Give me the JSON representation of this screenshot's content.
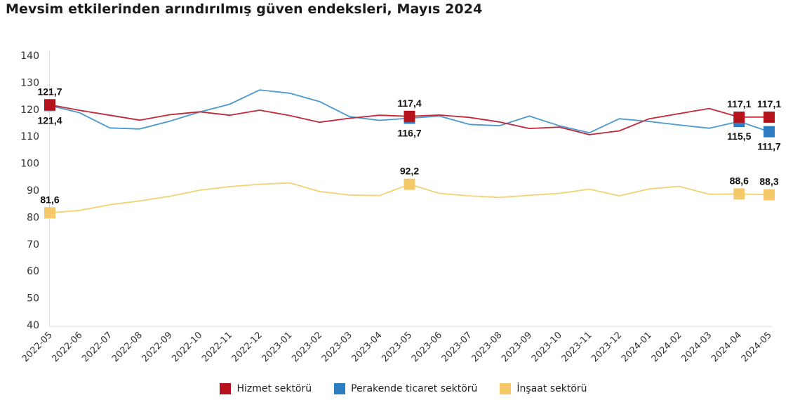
{
  "chart_data": {
    "type": "line",
    "title": "Mevsim etkilerinden arındırılmış güven endeksleri, Mayıs 2024",
    "xlabel": "",
    "ylabel": "",
    "ylim": [
      40,
      140
    ],
    "yticks": [
      "40",
      "50",
      "60",
      "70",
      "80",
      "90",
      "100",
      "110",
      "120",
      "130",
      "140"
    ],
    "grid": false,
    "legend_position": "bottom",
    "categories": [
      "2022-05",
      "2022-06",
      "2022-07",
      "2022-08",
      "2022-09",
      "2022-10",
      "2022-11",
      "2022-12",
      "2023-01",
      "2023-02",
      "2023-03",
      "2023-04",
      "2023-05",
      "2023-06",
      "2023-07",
      "2023-08",
      "2023-09",
      "2023-10",
      "2023-11",
      "2023-12",
      "2024-01",
      "2024-02",
      "2024-03",
      "2024-04",
      "2024-05"
    ],
    "series": [
      {
        "name": "Hizmet sektörü",
        "color": "#b5121b",
        "line_color": "#c22838",
        "values": [
          121.7,
          119.6,
          117.8,
          116.0,
          118.0,
          119.1,
          117.8,
          119.7,
          117.7,
          115.2,
          116.7,
          117.8,
          117.4,
          117.9,
          117.0,
          115.3,
          112.9,
          113.4,
          110.6,
          112.0,
          116.5,
          118.4,
          120.3,
          117.1,
          117.1
        ],
        "labels": {
          "0": "121,7",
          "12": "117,4",
          "23": "117,1",
          "24": "117,1"
        },
        "label_position": "above"
      },
      {
        "name": "Perakende ticaret sektörü",
        "color": "#2e7cc2",
        "line_color": "#4a98cf",
        "values": [
          121.4,
          118.7,
          113.1,
          112.7,
          115.6,
          119.0,
          121.9,
          127.2,
          126.0,
          122.9,
          117.3,
          115.9,
          116.7,
          117.5,
          114.4,
          113.9,
          117.5,
          113.9,
          111.3,
          116.5,
          115.5,
          114.2,
          113.0,
          115.5,
          111.7
        ],
        "labels": {
          "0": "121,4",
          "12": "116,7",
          "23": "115,5",
          "24": "111,7"
        },
        "label_position": "below"
      },
      {
        "name": "İnşaat sektörü",
        "color": "#f5c86a",
        "line_color": "#f2d272",
        "values": [
          81.6,
          82.5,
          84.6,
          86.0,
          87.7,
          90.0,
          91.3,
          92.2,
          92.7,
          89.5,
          88.2,
          88.0,
          92.2,
          88.8,
          87.9,
          87.3,
          88.1,
          88.8,
          90.4,
          87.9,
          90.5,
          91.4,
          88.5,
          88.6,
          88.3
        ],
        "labels": {
          "0": "81,6",
          "12": "92,2",
          "23": "88,6",
          "24": "88,3"
        },
        "label_position": "above"
      }
    ],
    "marker_indices": [
      0,
      12,
      23,
      24
    ]
  }
}
